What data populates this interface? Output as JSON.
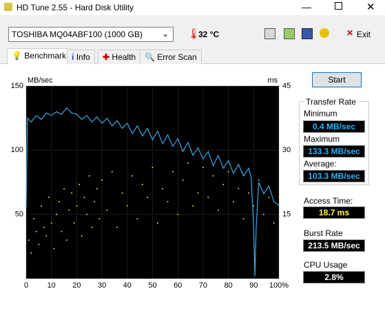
{
  "window": {
    "title": "HD Tune 2.55 - Hard Disk Utility"
  },
  "toolbar": {
    "drive": "TOSHIBA MQ04ABF100 (1000 GB)",
    "temperature": "32 °C",
    "exit": "Exit"
  },
  "tabs": [
    "Benchmark",
    "Info",
    "Health",
    "Error Scan"
  ],
  "start_button": "Start",
  "stats": {
    "transfer_rate": "Transfer Rate",
    "minimum_label": "Minimum",
    "minimum": "0.4 MB/sec",
    "maximum_label": "Maximum",
    "maximum": "133.3 MB/sec",
    "average_label": "Average:",
    "average": "103.3 MB/sec",
    "access_time_label": "Access Time:",
    "access_time": "18.7 ms",
    "burst_rate_label": "Burst Rate",
    "burst_rate": "213.5 MB/sec",
    "cpu_usage_label": "CPU Usage",
    "cpu_usage": "2.8%"
  },
  "chart_data": {
    "type": "line",
    "y_label": "MB/sec",
    "y2_label": "ms",
    "xlim": [
      0,
      100
    ],
    "xticks": [
      0,
      10,
      20,
      30,
      40,
      50,
      60,
      70,
      80,
      90,
      {
        "value": 100,
        "label": "100%"
      }
    ],
    "ylim": [
      0,
      150
    ],
    "yticks": [
      50,
      100,
      150
    ],
    "y2lim": [
      0,
      45
    ],
    "y2ticks": [
      15,
      30,
      45
    ],
    "grid": true,
    "series": [
      {
        "color": "#3aa8e8",
        "x": [
          0,
          0.5,
          2,
          4,
          6,
          8,
          10,
          12,
          14,
          16,
          18,
          20,
          22,
          24,
          26,
          28,
          30,
          32,
          34,
          36,
          38,
          40,
          42,
          44,
          46,
          48,
          50,
          52,
          54,
          56,
          58,
          60,
          62,
          64,
          66,
          68,
          70,
          72,
          74,
          76,
          78,
          80,
          82,
          84,
          86,
          88,
          89,
          90,
          90.5,
          91,
          92,
          94,
          96,
          98,
          100
        ],
        "values": [
          55,
          125,
          122,
          127,
          124,
          129,
          127,
          130,
          128,
          133,
          129,
          128,
          124,
          127,
          122,
          126,
          121,
          125,
          119,
          123,
          117,
          121,
          113,
          119,
          111,
          117,
          108,
          115,
          105,
          112,
          103,
          109,
          99,
          106,
          96,
          102,
          93,
          99,
          88,
          96,
          86,
          92,
          82,
          89,
          80,
          86,
          79,
          40,
          2,
          40,
          75,
          66,
          72,
          60,
          57
        ]
      },
      {
        "color": "#e0e060",
        "axis": "y2",
        "x": [
          1,
          2,
          3,
          4,
          5,
          6,
          7,
          8,
          9,
          10,
          11,
          12,
          13,
          14,
          15,
          16,
          17,
          18,
          19,
          20,
          21,
          22,
          23,
          24,
          25,
          26,
          27,
          28,
          29,
          30,
          32,
          34,
          36,
          38,
          40,
          42,
          44,
          46,
          48,
          50,
          52,
          54,
          56,
          58,
          60,
          62,
          64,
          66,
          68,
          70,
          72,
          74,
          76,
          78,
          80,
          82,
          84,
          86,
          88,
          90,
          92,
          94,
          96,
          98
        ],
        "values": [
          9,
          6,
          14,
          11,
          8,
          17,
          12,
          10,
          19,
          13,
          7,
          15,
          18,
          11,
          21,
          9,
          16,
          20,
          13,
          17,
          22,
          10,
          19,
          15,
          24,
          12,
          18,
          21,
          14,
          23,
          16,
          25,
          12,
          20,
          17,
          24,
          14,
          22,
          19,
          26,
          13,
          21,
          18,
          25,
          15,
          23,
          27,
          17,
          20,
          26,
          19,
          24,
          16,
          22,
          25,
          18,
          21,
          14,
          20,
          17,
          23,
          15,
          19,
          13
        ]
      }
    ]
  }
}
